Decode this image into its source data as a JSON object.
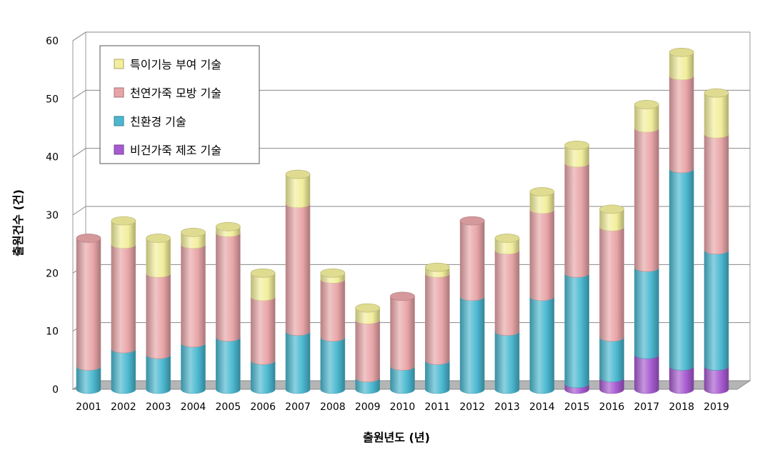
{
  "chart_data": {
    "type": "bar",
    "stacked": true,
    "style": "3d-cylinder",
    "categories": [
      "2001",
      "2002",
      "2003",
      "2004",
      "2005",
      "2006",
      "2007",
      "2008",
      "2009",
      "2010",
      "2011",
      "2012",
      "2013",
      "2014",
      "2015",
      "2016",
      "2017",
      "2018",
      "2019"
    ],
    "series": [
      {
        "name": "비건가죽 제조 기술",
        "color": "#a75bd0",
        "values": [
          0,
          0,
          0,
          0,
          0,
          0,
          0,
          0,
          0,
          0,
          0,
          0,
          0,
          0,
          1,
          2,
          6,
          4,
          4
        ]
      },
      {
        "name": "친환경 기술",
        "color": "#4bb8d0",
        "values": [
          4,
          7,
          6,
          8,
          9,
          5,
          10,
          9,
          2,
          4,
          5,
          16,
          10,
          16,
          19,
          7,
          15,
          34,
          20
        ]
      },
      {
        "name": "천연가죽 모방 기술",
        "color": "#e8a5a8",
        "values": [
          22,
          18,
          14,
          17,
          18,
          11,
          22,
          10,
          10,
          12,
          15,
          13,
          14,
          15,
          19,
          19,
          24,
          16,
          20
        ]
      },
      {
        "name": "특이기능 부여 기술",
        "color": "#f2ee9c",
        "values": [
          0,
          4,
          6,
          2,
          1,
          4,
          5,
          1,
          2,
          0,
          1,
          0,
          2,
          3,
          3,
          3,
          4,
          4,
          7
        ]
      }
    ],
    "legend_order": [
      3,
      2,
      1,
      0
    ],
    "ylim": [
      0,
      60
    ],
    "yticks": [
      0,
      10,
      20,
      30,
      40,
      50,
      60
    ],
    "xlabel": "출원년도 (년)",
    "ylabel": "출원건수 (건)",
    "grid": true,
    "legend_position": "top-left"
  }
}
